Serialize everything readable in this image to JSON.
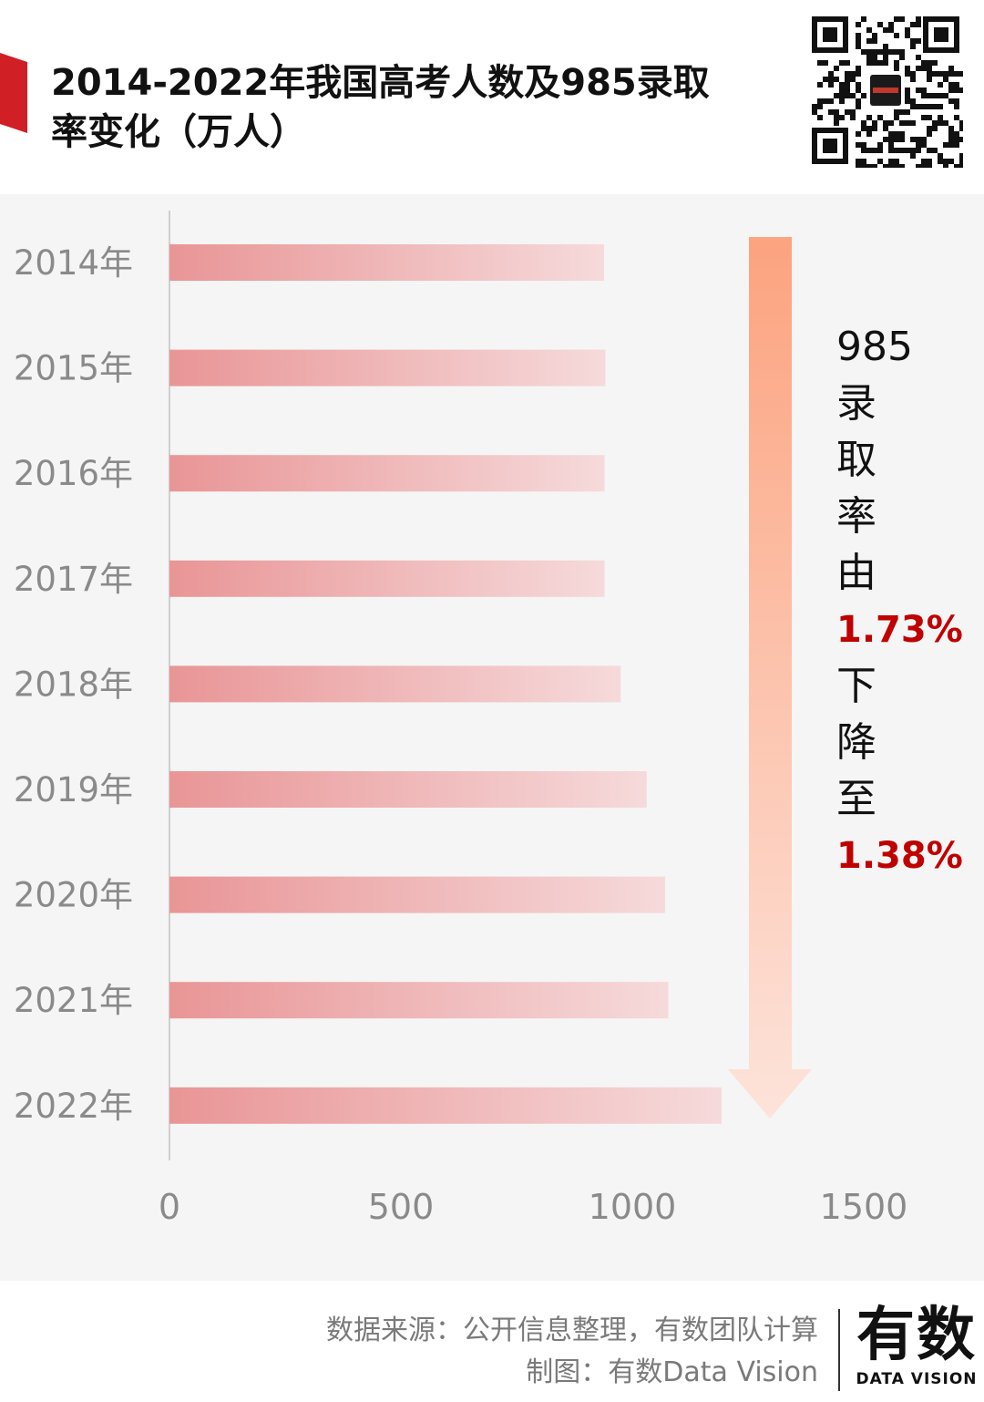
{
  "header": {
    "title_line1": "2014-2022年我国高考人数及985录取",
    "title_line2": "率变化（万人）",
    "accent_color": "#d11f26"
  },
  "chart_data": {
    "type": "bar",
    "orientation": "horizontal",
    "title": "2014-2022年我国高考人数及985录取率变化（万人）",
    "categories": [
      "2014年",
      "2015年",
      "2016年",
      "2017年",
      "2018年",
      "2019年",
      "2020年",
      "2021年",
      "2022年"
    ],
    "values": [
      939,
      942,
      940,
      940,
      975,
      1031,
      1071,
      1078,
      1193
    ],
    "xlim": [
      0,
      1500
    ],
    "xticks": [
      "0",
      "500",
      "1000",
      "1500"
    ],
    "bar_color_start": "#e99596",
    "bar_color_end": "#f6dadb",
    "grid": false
  },
  "annotation": {
    "arrow_color_top": "#fca37f",
    "arrow_color_bottom": "#fde3da",
    "lines": [
      {
        "text": "985",
        "highlight": false
      },
      {
        "text": "录",
        "highlight": false
      },
      {
        "text": "取",
        "highlight": false
      },
      {
        "text": "率",
        "highlight": false
      },
      {
        "text": "由",
        "highlight": false
      },
      {
        "text": "1.73%",
        "highlight": true
      },
      {
        "text": "下",
        "highlight": false
      },
      {
        "text": "降",
        "highlight": false
      },
      {
        "text": "至",
        "highlight": false
      },
      {
        "text": "1.38%",
        "highlight": true
      }
    ]
  },
  "footer": {
    "source": "数据来源：公开信息整理，有数团队计算",
    "credit": "制图：有数Data Vision",
    "logo_main": "有数",
    "logo_sub": "DATA VISION"
  }
}
